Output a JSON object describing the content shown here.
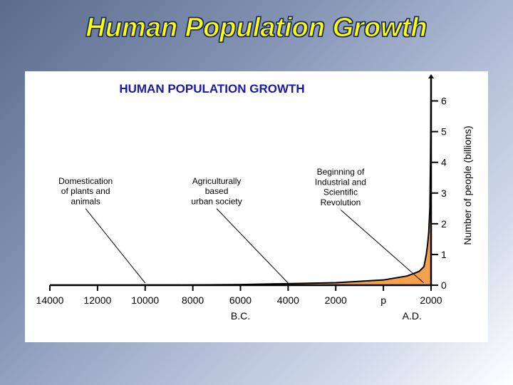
{
  "slide": {
    "title": "Human Population Growth",
    "background_gradient": [
      "#5a6b8c",
      "#8594b5",
      "#b0bcd6",
      "#d0d9ea",
      "#ffffff"
    ]
  },
  "chart": {
    "type": "area",
    "title": "HUMAN POPULATION GROWTH",
    "title_fontsize": 17,
    "title_color": "#1a1aa3",
    "background_color": "#ffffff",
    "axis_color": "#000000",
    "axis_width": 2.5,
    "series_fill_color": "#f5a04a",
    "series_stroke_color": "#000000",
    "series_stroke_width": 2,
    "x_axis": {
      "min_year": -14000,
      "max_year": 2000,
      "ticks": [
        {
          "year": -14000,
          "label": "14000"
        },
        {
          "year": -12000,
          "label": "12000"
        },
        {
          "year": -10000,
          "label": "10000"
        },
        {
          "year": -8000,
          "label": "8000"
        },
        {
          "year": -6000,
          "label": "6000"
        },
        {
          "year": -4000,
          "label": "4000"
        },
        {
          "year": -2000,
          "label": "2000"
        },
        {
          "year": 0,
          "label": "p"
        },
        {
          "year": 2000,
          "label": "2000"
        }
      ],
      "era_labels": [
        {
          "text": "B.C.",
          "year": -6000
        },
        {
          "text": "A.D.",
          "year": 1200
        }
      ],
      "tick_fontsize": 14,
      "era_fontsize": 14
    },
    "y_axis": {
      "min": 0,
      "max": 6.5,
      "ticks": [
        0,
        1,
        2,
        3,
        4,
        5,
        6
      ],
      "tick_fontsize": 14,
      "label": "Number of people (billions)",
      "label_fontsize": 14
    },
    "data_points": [
      {
        "year": -14000,
        "pop": 0.003
      },
      {
        "year": -12000,
        "pop": 0.004
      },
      {
        "year": -10000,
        "pop": 0.005
      },
      {
        "year": -8000,
        "pop": 0.008
      },
      {
        "year": -6000,
        "pop": 0.02
      },
      {
        "year": -4000,
        "pop": 0.05
      },
      {
        "year": -2000,
        "pop": 0.08
      },
      {
        "year": 0,
        "pop": 0.17
      },
      {
        "year": 1000,
        "pop": 0.3
      },
      {
        "year": 1500,
        "pop": 0.45
      },
      {
        "year": 1700,
        "pop": 0.6
      },
      {
        "year": 1800,
        "pop": 1.0
      },
      {
        "year": 1850,
        "pop": 1.3
      },
      {
        "year": 1900,
        "pop": 1.7
      },
      {
        "year": 1950,
        "pop": 2.5
      },
      {
        "year": 1975,
        "pop": 4.0
      },
      {
        "year": 2000,
        "pop": 6.3
      }
    ],
    "annotations": [
      {
        "lines": [
          "Domestication",
          "of plants and",
          "animals"
        ],
        "label_x_year": -12500,
        "label_y_pop": 3.3,
        "pointer_to_year": -10000,
        "fontsize": 12
      },
      {
        "lines": [
          "Agriculturally",
          "based",
          "urban society"
        ],
        "label_x_year": -7000,
        "label_y_pop": 3.3,
        "pointer_to_year": -4000,
        "fontsize": 12
      },
      {
        "lines": [
          "Beginning of",
          "Industrial and",
          "Scientific",
          "Revolution"
        ],
        "label_x_year": -1800,
        "label_y_pop": 3.6,
        "pointer_to_year": 1700,
        "fontsize": 12
      }
    ]
  }
}
